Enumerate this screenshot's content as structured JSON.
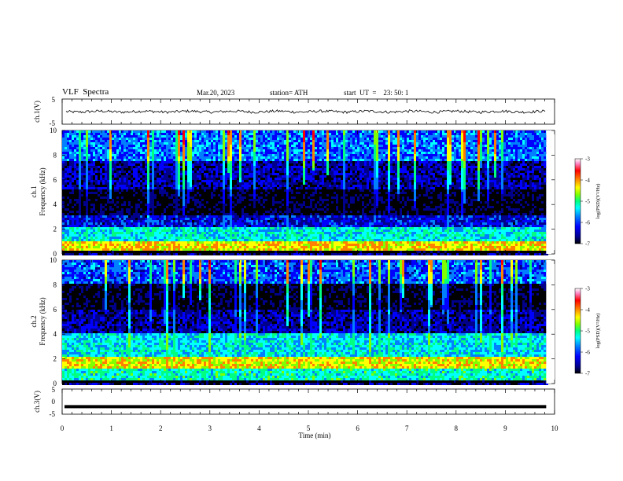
{
  "header": {
    "title": "VLF  Spectra",
    "date": "Mar.20, 2023",
    "station": "station= ATH",
    "start": "start  UT  =    23: 50: 1"
  },
  "chart_data": [
    {
      "type": "line",
      "panel": "ch1-waveform",
      "ylabel": "ch.1(V)",
      "ylim": [
        -5,
        5
      ],
      "yticks": [
        "5",
        "-5"
      ],
      "xlim": [
        0,
        10
      ],
      "series": [
        {
          "summary": "noisy waveform near 0 V, spanning roughly -1 to +1 V",
          "color": "#000000"
        }
      ]
    },
    {
      "type": "heatmap",
      "panel": "ch1-spectrogram",
      "ylabel": "ch.1\nFrequency (kHz)",
      "ylim": [
        0,
        10
      ],
      "yticks": [
        "0",
        "2",
        "4",
        "6",
        "8",
        "10"
      ],
      "xlim": [
        0,
        10
      ],
      "data_end_min": 9.83,
      "colorbar": {
        "label": "log(PSD)(V²/Hz)",
        "range": [
          -7,
          -3
        ],
        "ticks": [
          "-3",
          "-4",
          "-5",
          "-6",
          "-7"
        ]
      },
      "bands": [
        {
          "f": [
            0,
            0.3
          ],
          "logpsd": -7
        },
        {
          "f": [
            0.3,
            1.0
          ],
          "logpsd": -4.2
        },
        {
          "f": [
            1.0,
            2.2
          ],
          "logpsd": -5.3
        },
        {
          "f": [
            2.2,
            3.2
          ],
          "logpsd": -6.2
        },
        {
          "f": [
            3.2,
            5.2
          ],
          "logpsd": -6.8
        },
        {
          "f": [
            5.2,
            7.5
          ],
          "logpsd": -6.4
        },
        {
          "f": [
            7.5,
            10
          ],
          "logpsd": -5.8
        }
      ],
      "notes": "frequent vertical impulsive sferics reaching -5 to -4"
    },
    {
      "type": "heatmap",
      "panel": "ch2-spectrogram",
      "ylabel": "ch.2\nFrequency (kHz)",
      "ylim": [
        0,
        10
      ],
      "yticks": [
        "0",
        "2",
        "4",
        "6",
        "8",
        "10"
      ],
      "xlim": [
        0,
        10
      ],
      "data_end_min": 9.83,
      "colorbar": {
        "label": "log(PSD)(V²/Hz)",
        "range": [
          -7,
          -3
        ],
        "ticks": [
          "-3",
          "-4",
          "-5",
          "-6",
          "-7"
        ]
      },
      "bands": [
        {
          "f": [
            0,
            0.3
          ],
          "logpsd": -7
        },
        {
          "f": [
            0.3,
            1.2
          ],
          "logpsd": -5.2
        },
        {
          "f": [
            1.2,
            2.2
          ],
          "logpsd": -4.3
        },
        {
          "f": [
            2.2,
            4.0
          ],
          "logpsd": -5.4
        },
        {
          "f": [
            4.0,
            6.0
          ],
          "logpsd": -6.4
        },
        {
          "f": [
            6.0,
            8.0
          ],
          "logpsd": -6.8
        },
        {
          "f": [
            8.0,
            10
          ],
          "logpsd": -5.9
        }
      ],
      "notes": "frequent vertical impulsive sferics reaching -5 to -4"
    },
    {
      "type": "line",
      "panel": "ch3-waveform",
      "ylabel": "ch.3(V)",
      "ylim": [
        -5,
        5
      ],
      "yticks": [
        "5",
        "0",
        "-5"
      ],
      "xlim": [
        0,
        10
      ],
      "series": [
        {
          "summary": "thick flat trace near -2 V",
          "level": -2,
          "color": "#000000"
        }
      ]
    }
  ],
  "xaxis": {
    "label": "Time  (min)",
    "ticks": [
      "0",
      "1",
      "2",
      "3",
      "4",
      "5",
      "6",
      "7",
      "8",
      "9",
      "10"
    ]
  },
  "colors": {
    "colormap": [
      "#000000",
      "#00008b",
      "#0000ff",
      "#0080ff",
      "#00ffff",
      "#00ff80",
      "#80ff00",
      "#ffff00",
      "#ff8000",
      "#ff0000",
      "#ff80c0",
      "#ffffff"
    ]
  }
}
